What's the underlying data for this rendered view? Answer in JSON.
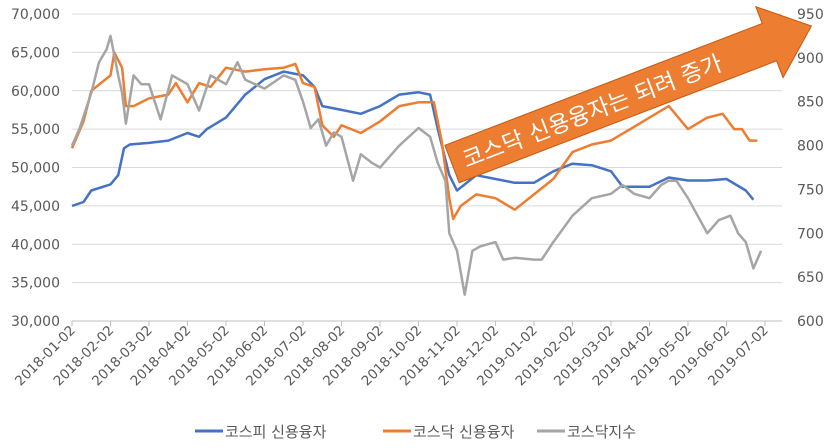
{
  "chart_data": {
    "type": "line",
    "title": "",
    "x_unit": "months since 2018-01-02",
    "x_tick_labels": [
      "2018-01-02",
      "2018-02-02",
      "2018-03-02",
      "2018-04-02",
      "2018-05-02",
      "2018-06-02",
      "2018-07-02",
      "2018-08-02",
      "2018-09-02",
      "2018-10-02",
      "2018-11-02",
      "2018-12-02",
      "2019-01-02",
      "2019-02-02",
      "2019-03-02",
      "2019-04-02",
      "2019-05-02",
      "2019-06-02",
      "2019-07-02"
    ],
    "y_left": {
      "ylim": [
        30000,
        70000
      ],
      "ticks": [
        "30,000",
        "35,000",
        "40,000",
        "45,000",
        "50,000",
        "55,000",
        "60,000",
        "65,000",
        "70,000"
      ]
    },
    "y_right": {
      "ylim": [
        600,
        950
      ],
      "ticks": [
        "600",
        "650",
        "700",
        "750",
        "800",
        "850",
        "900",
        "950"
      ]
    },
    "grid": true,
    "legend_position": "bottom",
    "series": [
      {
        "name": "코스피 신용융자",
        "axis": "left",
        "color": "#4472C4",
        "x": [
          0,
          0.3,
          0.5,
          1.0,
          1.2,
          1.35,
          1.5,
          2,
          2.5,
          3,
          3.3,
          3.5,
          4,
          4.5,
          5,
          5.5,
          6,
          6.3,
          6.5,
          7,
          7.5,
          8,
          8.5,
          9,
          9.3,
          9.5,
          9.8,
          10,
          10.5,
          11,
          11.5,
          12,
          12.5,
          13,
          13.5,
          14,
          14.3,
          15,
          15.5,
          16,
          16.5,
          17,
          17.5,
          17.7
        ],
        "values": [
          45000,
          45500,
          47000,
          47800,
          49000,
          52500,
          53000,
          53200,
          53500,
          54500,
          54000,
          55000,
          56500,
          59500,
          61500,
          62500,
          62000,
          60500,
          58000,
          57500,
          57000,
          58000,
          59500,
          59800,
          59500,
          55000,
          49000,
          47000,
          49000,
          48500,
          48000,
          48000,
          49500,
          50500,
          50300,
          49500,
          47500,
          47500,
          48700,
          48300,
          48300,
          48500,
          47000,
          45800
        ]
      },
      {
        "name": "코스닥 신용융자",
        "axis": "left",
        "color": "#ED7D31",
        "x": [
          0,
          0.3,
          0.5,
          1,
          1.1,
          1.3,
          1.4,
          1.6,
          2,
          2.5,
          2.7,
          3,
          3.3,
          3.6,
          4,
          4.5,
          5,
          5.5,
          5.8,
          6,
          6.3,
          6.5,
          6.8,
          7,
          7.5,
          8,
          8.5,
          9,
          9.4,
          9.6,
          9.8,
          9.9,
          10.1,
          10.5,
          11,
          11.5,
          12,
          12.5,
          13,
          13.5,
          14,
          14.5,
          15,
          15.5,
          16,
          16.5,
          16.9,
          17.2,
          17.4,
          17.6,
          17.8
        ],
        "values": [
          52500,
          56000,
          60000,
          62000,
          65000,
          63000,
          58000,
          58000,
          59000,
          59500,
          61000,
          58500,
          61000,
          60500,
          63000,
          62500,
          62800,
          63000,
          63500,
          61000,
          60500,
          55500,
          54000,
          55500,
          54500,
          56000,
          58000,
          58500,
          58500,
          53500,
          46000,
          43300,
          45000,
          46500,
          46000,
          44500,
          46500,
          48500,
          52000,
          53000,
          53500,
          55000,
          56500,
          58000,
          55000,
          56500,
          57000,
          55000,
          55000,
          53500,
          53500
        ]
      },
      {
        "name": "코스닥지수",
        "axis": "right",
        "color": "#A5A5A5",
        "x": [
          0,
          0.2,
          0.5,
          0.7,
          0.9,
          1.0,
          1.2,
          1.3,
          1.4,
          1.6,
          1.8,
          2,
          2.3,
          2.6,
          3,
          3.3,
          3.6,
          4,
          4.3,
          4.5,
          5,
          5.5,
          5.8,
          6,
          6.2,
          6.4,
          6.6,
          6.8,
          7,
          7.3,
          7.5,
          7.8,
          8,
          8.5,
          9,
          9.3,
          9.5,
          9.7,
          9.8,
          10,
          10.2,
          10.4,
          10.6,
          11,
          11.2,
          11.5,
          12,
          12.2,
          12.5,
          13,
          13.5,
          14,
          14.3,
          14.6,
          15,
          15.3,
          15.5,
          15.7,
          16,
          16.5,
          16.8,
          17.1,
          17.3,
          17.5,
          17.7,
          17.9
        ],
        "values": [
          800,
          820,
          860,
          895,
          910,
          925,
          880,
          860,
          825,
          880,
          870,
          870,
          830,
          880,
          870,
          840,
          880,
          870,
          895,
          875,
          865,
          880,
          875,
          850,
          820,
          830,
          800,
          815,
          810,
          760,
          790,
          780,
          775,
          800,
          820,
          810,
          780,
          760,
          700,
          680,
          630,
          680,
          685,
          690,
          670,
          672,
          670,
          670,
          690,
          720,
          740,
          745,
          755,
          745,
          740,
          755,
          760,
          760,
          740,
          700,
          715,
          720,
          700,
          690,
          660,
          680
        ]
      }
    ],
    "annotation": "코스닥 신용융자는 되려 증가"
  }
}
